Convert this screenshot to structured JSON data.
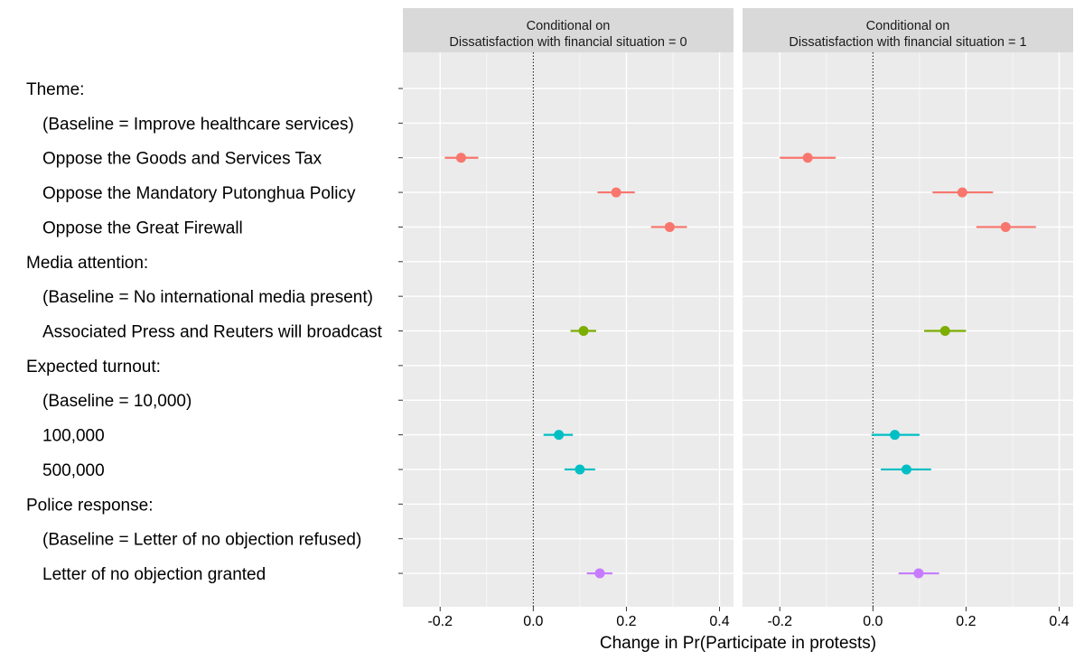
{
  "chart_data": {
    "type": "scatter",
    "subtype": "coefficient-plot-with-intervals",
    "xlabel": "Change in Pr(Participate in protests)",
    "xlim": [
      -0.28,
      0.43
    ],
    "x_ticks": [
      -0.2,
      0.0,
      0.2,
      0.4
    ],
    "x_tick_labels": [
      "-0.2",
      "0.0",
      "0.2",
      "0.4"
    ],
    "reference_line": 0,
    "grid": true,
    "legend": "none",
    "colors": {
      "theme": "#F8766D",
      "media": "#7CAE00",
      "turnout": "#00BFC4",
      "police": "#C77CFF",
      "panel_bg": "#EBEBEB",
      "strip_bg": "#D9D9D9"
    },
    "rows": [
      {
        "label": "Theme:",
        "indent": false
      },
      {
        "label": "(Baseline = Improve healthcare services)",
        "indent": true
      },
      {
        "label": "Oppose the Goods and Services Tax",
        "indent": true,
        "group": "theme"
      },
      {
        "label": "Oppose the Mandatory Putonghua Policy",
        "indent": true,
        "group": "theme"
      },
      {
        "label": "Oppose the Great Firewall",
        "indent": true,
        "group": "theme"
      },
      {
        "label": "Media attention:",
        "indent": false
      },
      {
        "label": "(Baseline = No international media present)",
        "indent": true
      },
      {
        "label": "Associated Press and Reuters will broadcast",
        "indent": true,
        "group": "media"
      },
      {
        "label": "Expected turnout:",
        "indent": false
      },
      {
        "label": "(Baseline = 10,000)",
        "indent": true
      },
      {
        "label": "100,000",
        "indent": true,
        "group": "turnout"
      },
      {
        "label": "500,000",
        "indent": true,
        "group": "turnout"
      },
      {
        "label": "Police response:",
        "indent": false
      },
      {
        "label": "(Baseline = Letter of no objection refused)",
        "indent": true
      },
      {
        "label": "Letter of no objection granted",
        "indent": true,
        "group": "police"
      }
    ],
    "panels": [
      {
        "strip_line1": "Conditional on",
        "strip_line2": "Dissatisfaction with financial situation = 0",
        "estimates": [
          {
            "row": 2,
            "est": -0.155,
            "lo": -0.19,
            "hi": -0.118,
            "group": "theme"
          },
          {
            "row": 3,
            "est": 0.178,
            "lo": 0.138,
            "hi": 0.218,
            "group": "theme"
          },
          {
            "row": 4,
            "est": 0.293,
            "lo": 0.253,
            "hi": 0.33,
            "group": "theme"
          },
          {
            "row": 7,
            "est": 0.108,
            "lo": 0.08,
            "hi": 0.135,
            "group": "media"
          },
          {
            "row": 10,
            "est": 0.055,
            "lo": 0.022,
            "hi": 0.085,
            "group": "turnout"
          },
          {
            "row": 11,
            "est": 0.1,
            "lo": 0.067,
            "hi": 0.133,
            "group": "turnout"
          },
          {
            "row": 14,
            "est": 0.143,
            "lo": 0.115,
            "hi": 0.17,
            "group": "police"
          }
        ]
      },
      {
        "strip_line1": "Conditional on",
        "strip_line2": "Dissatisfaction with financial situation = 1",
        "estimates": [
          {
            "row": 2,
            "est": -0.14,
            "lo": -0.2,
            "hi": -0.08,
            "group": "theme"
          },
          {
            "row": 3,
            "est": 0.192,
            "lo": 0.128,
            "hi": 0.258,
            "group": "theme"
          },
          {
            "row": 4,
            "est": 0.285,
            "lo": 0.222,
            "hi": 0.35,
            "group": "theme"
          },
          {
            "row": 7,
            "est": 0.155,
            "lo": 0.11,
            "hi": 0.2,
            "group": "media"
          },
          {
            "row": 10,
            "est": 0.047,
            "lo": -0.003,
            "hi": 0.1,
            "group": "turnout"
          },
          {
            "row": 11,
            "est": 0.072,
            "lo": 0.017,
            "hi": 0.125,
            "group": "turnout"
          },
          {
            "row": 14,
            "est": 0.098,
            "lo": 0.055,
            "hi": 0.142,
            "group": "police"
          }
        ]
      }
    ]
  }
}
